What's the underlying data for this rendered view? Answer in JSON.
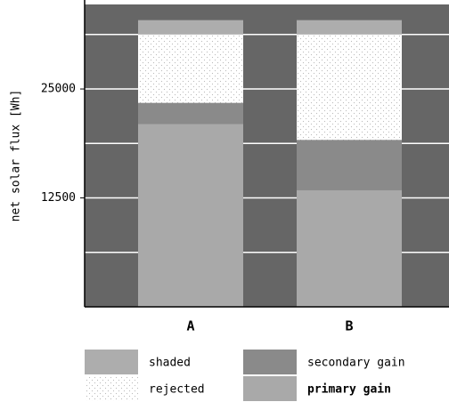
{
  "chart_data": {
    "type": "stacked-bar",
    "ylabel": "net solar flux [Wh]",
    "categories": [
      "A",
      "B"
    ],
    "series": [
      {
        "name": "primary gain",
        "color": "#a9a9a9",
        "values": [
          21000,
          13400
        ]
      },
      {
        "name": "secondary gain",
        "color": "#8a8a8a",
        "values": [
          2400,
          5750
        ]
      },
      {
        "name": "rejected",
        "color": "#ffffff",
        "pattern": "dots",
        "values": [
          7850,
          12100
        ]
      },
      {
        "name": "shaded",
        "color": "#adadad",
        "values": [
          1650,
          1650
        ]
      }
    ],
    "ylim": [
      0,
      34700
    ],
    "yticks": [
      12500,
      25000
    ],
    "minor_yticks": [
      6250,
      18750,
      31250
    ],
    "grid": true,
    "background": "#666666"
  }
}
